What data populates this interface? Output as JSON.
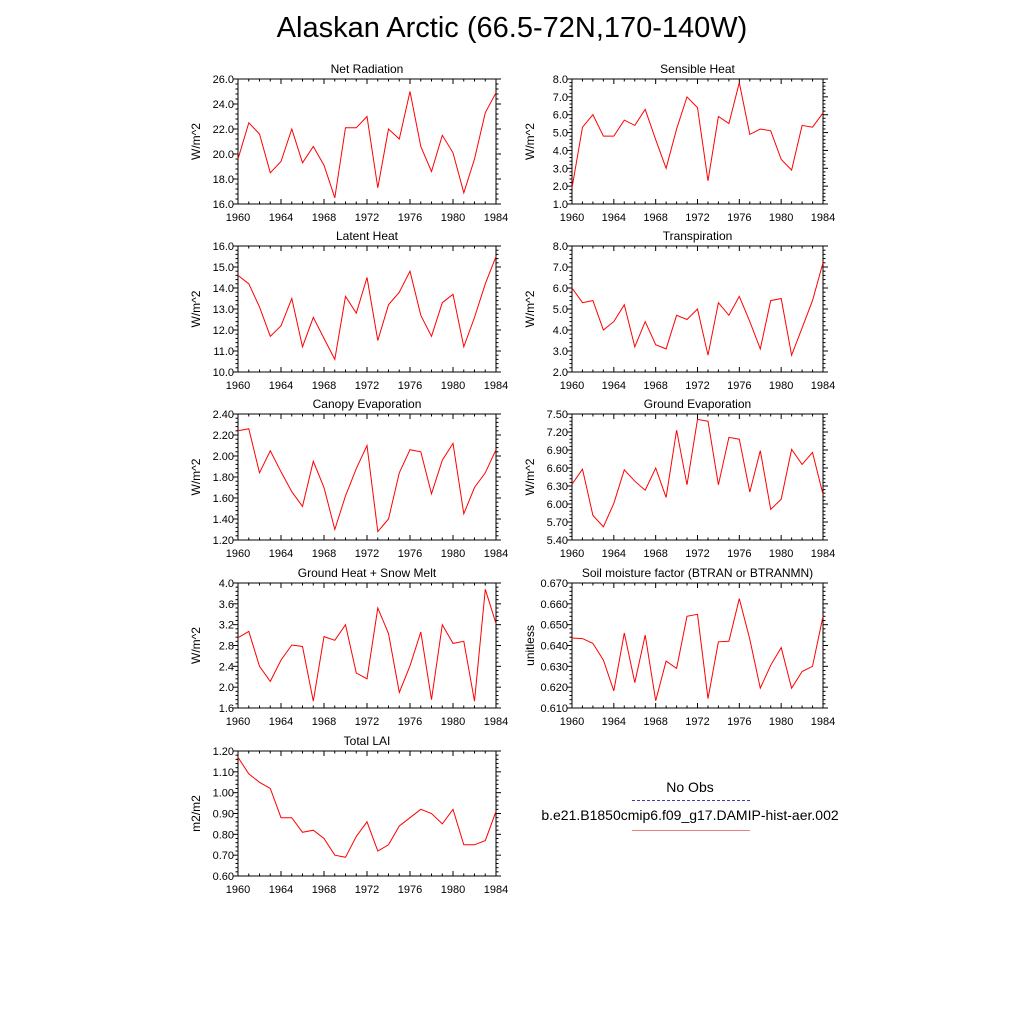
{
  "page_title": "Alaskan Arctic (66.5-72N,170-140W)",
  "legend": {
    "obs_label": "No Obs",
    "run_label": "b.e21.B1850cmip6.f09_g17.DAMIP-hist-aer.002",
    "obs_color": "#3b3bb0",
    "run_color": "#e88080"
  },
  "line_color": "#ff0000",
  "chart_data": [
    {
      "type": "line",
      "title": "Net Radiation",
      "ylabel": "W/m^2",
      "xlim": [
        1960,
        1984
      ],
      "ylim": [
        16,
        26
      ],
      "xticks": [
        1960,
        1964,
        1968,
        1972,
        1976,
        1980,
        1984
      ],
      "xtick_labels": [
        "1960",
        "1964",
        "1968",
        "1972",
        "1976",
        "1980",
        "1984"
      ],
      "yticks": [
        16,
        18,
        20,
        22,
        24,
        26
      ],
      "ytick_labels": [
        "16.0",
        "18.0",
        "20.0",
        "22.0",
        "24.0",
        "26.0"
      ],
      "x": [
        1960,
        1961,
        1962,
        1963,
        1964,
        1965,
        1966,
        1967,
        1968,
        1969,
        1970,
        1971,
        1972,
        1973,
        1974,
        1975,
        1976,
        1977,
        1978,
        1979,
        1980,
        1981,
        1982,
        1983,
        1984
      ],
      "series": [
        {
          "values": [
            19.6,
            22.5,
            21.6,
            18.5,
            19.4,
            22.0,
            19.3,
            20.6,
            19.1,
            16.5,
            22.1,
            22.1,
            23.0,
            17.3,
            22.0,
            21.2,
            25.0,
            20.6,
            18.6,
            21.5,
            20.1,
            16.9,
            19.6,
            23.3,
            24.9
          ]
        }
      ]
    },
    {
      "type": "line",
      "title": "Sensible Heat",
      "ylabel": "W/m^2",
      "xlim": [
        1960,
        1984
      ],
      "ylim": [
        1,
        8
      ],
      "xticks": [
        1960,
        1964,
        1968,
        1972,
        1976,
        1980,
        1984
      ],
      "xtick_labels": [
        "1960",
        "1964",
        "1968",
        "1972",
        "1976",
        "1980",
        "1984"
      ],
      "yticks": [
        1,
        2,
        3,
        4,
        5,
        6,
        7,
        8
      ],
      "ytick_labels": [
        "1.0",
        "2.0",
        "3.0",
        "4.0",
        "5.0",
        "6.0",
        "7.0",
        "8.0"
      ],
      "x": [
        1960,
        1961,
        1962,
        1963,
        1964,
        1965,
        1966,
        1967,
        1968,
        1969,
        1970,
        1971,
        1972,
        1973,
        1974,
        1975,
        1976,
        1977,
        1978,
        1979,
        1980,
        1981,
        1982,
        1983,
        1984
      ],
      "series": [
        {
          "values": [
            1.9,
            5.3,
            6.0,
            4.8,
            4.8,
            5.7,
            5.4,
            6.3,
            4.6,
            3.0,
            5.2,
            7.0,
            6.4,
            2.3,
            5.9,
            5.5,
            7.8,
            4.9,
            5.2,
            5.1,
            3.5,
            2.9,
            5.4,
            5.3,
            6.1
          ]
        }
      ]
    },
    {
      "type": "line",
      "title": "Latent Heat",
      "ylabel": "W/m^2",
      "xlim": [
        1960,
        1984
      ],
      "ylim": [
        10,
        16
      ],
      "xticks": [
        1960,
        1964,
        1968,
        1972,
        1976,
        1980,
        1984
      ],
      "xtick_labels": [
        "1960",
        "1964",
        "1968",
        "1972",
        "1976",
        "1980",
        "1984"
      ],
      "yticks": [
        10,
        11,
        12,
        13,
        14,
        15,
        16
      ],
      "ytick_labels": [
        "10.0",
        "11.0",
        "12.0",
        "13.0",
        "14.0",
        "15.0",
        "16.0"
      ],
      "x": [
        1960,
        1961,
        1962,
        1963,
        1964,
        1965,
        1966,
        1967,
        1968,
        1969,
        1970,
        1971,
        1972,
        1973,
        1974,
        1975,
        1976,
        1977,
        1978,
        1979,
        1980,
        1981,
        1982,
        1983,
        1984
      ],
      "series": [
        {
          "values": [
            14.6,
            14.2,
            13.1,
            11.7,
            12.2,
            13.5,
            11.2,
            12.6,
            11.6,
            10.6,
            13.6,
            12.8,
            14.5,
            11.5,
            13.2,
            13.8,
            14.8,
            12.7,
            11.7,
            13.3,
            13.7,
            11.2,
            12.6,
            14.2,
            15.5
          ]
        }
      ]
    },
    {
      "type": "line",
      "title": "Transpiration",
      "ylabel": "W/m^2",
      "xlim": [
        1960,
        1984
      ],
      "ylim": [
        2,
        8
      ],
      "xticks": [
        1960,
        1964,
        1968,
        1972,
        1976,
        1980,
        1984
      ],
      "xtick_labels": [
        "1960",
        "1964",
        "1968",
        "1972",
        "1976",
        "1980",
        "1984"
      ],
      "yticks": [
        2,
        3,
        4,
        5,
        6,
        7,
        8
      ],
      "ytick_labels": [
        "2.0",
        "3.0",
        "4.0",
        "5.0",
        "6.0",
        "7.0",
        "8.0"
      ],
      "x": [
        1960,
        1961,
        1962,
        1963,
        1964,
        1965,
        1966,
        1967,
        1968,
        1969,
        1970,
        1971,
        1972,
        1973,
        1974,
        1975,
        1976,
        1977,
        1978,
        1979,
        1980,
        1981,
        1982,
        1983,
        1984
      ],
      "series": [
        {
          "values": [
            6.0,
            5.3,
            5.4,
            4.0,
            4.4,
            5.2,
            3.2,
            4.4,
            3.3,
            3.1,
            4.7,
            4.5,
            5.0,
            2.8,
            5.3,
            4.7,
            5.6,
            4.4,
            3.1,
            5.4,
            5.5,
            2.8,
            4.1,
            5.4,
            7.2
          ]
        }
      ]
    },
    {
      "type": "line",
      "title": "Canopy Evaporation",
      "ylabel": "W/m^2",
      "xlim": [
        1960,
        1984
      ],
      "ylim": [
        1.2,
        2.4
      ],
      "xticks": [
        1960,
        1964,
        1968,
        1972,
        1976,
        1980,
        1984
      ],
      "xtick_labels": [
        "1960",
        "1964",
        "1968",
        "1972",
        "1976",
        "1980",
        "1984"
      ],
      "yticks": [
        1.2,
        1.4,
        1.6,
        1.8,
        2.0,
        2.2,
        2.4
      ],
      "ytick_labels": [
        "1.20",
        "1.40",
        "1.60",
        "1.80",
        "2.00",
        "2.20",
        "2.40"
      ],
      "x": [
        1960,
        1961,
        1962,
        1963,
        1964,
        1965,
        1966,
        1967,
        1968,
        1969,
        1970,
        1971,
        1972,
        1973,
        1974,
        1975,
        1976,
        1977,
        1978,
        1979,
        1980,
        1981,
        1982,
        1983,
        1984
      ],
      "series": [
        {
          "values": [
            2.24,
            2.26,
            1.84,
            2.05,
            1.85,
            1.66,
            1.52,
            1.95,
            1.7,
            1.3,
            1.62,
            1.88,
            2.1,
            1.28,
            1.4,
            1.84,
            2.06,
            2.04,
            1.64,
            1.96,
            2.12,
            1.45,
            1.7,
            1.84,
            2.06
          ]
        }
      ]
    },
    {
      "type": "line",
      "title": "Ground Evaporation",
      "ylabel": "W/m^2",
      "xlim": [
        1960,
        1984
      ],
      "ylim": [
        5.4,
        7.5
      ],
      "xticks": [
        1960,
        1964,
        1968,
        1972,
        1976,
        1980,
        1984
      ],
      "xtick_labels": [
        "1960",
        "1964",
        "1968",
        "1972",
        "1976",
        "1980",
        "1984"
      ],
      "yticks": [
        5.4,
        5.7,
        6.0,
        6.3,
        6.6,
        6.9,
        7.2,
        7.5
      ],
      "ytick_labels": [
        "5.40",
        "5.70",
        "6.00",
        "6.30",
        "6.60",
        "6.90",
        "7.20",
        "7.50"
      ],
      "x": [
        1960,
        1961,
        1962,
        1963,
        1964,
        1965,
        1966,
        1967,
        1968,
        1969,
        1970,
        1971,
        1972,
        1973,
        1974,
        1975,
        1976,
        1977,
        1978,
        1979,
        1980,
        1981,
        1982,
        1983,
        1984
      ],
      "series": [
        {
          "values": [
            6.33,
            6.58,
            5.81,
            5.62,
            6.01,
            6.57,
            6.38,
            6.23,
            6.6,
            6.11,
            7.23,
            6.32,
            7.41,
            7.38,
            6.32,
            7.11,
            7.08,
            6.2,
            6.89,
            5.91,
            6.08,
            6.91,
            6.66,
            6.86,
            6.16
          ]
        }
      ]
    },
    {
      "type": "line",
      "title": "Ground Heat + Snow Melt",
      "ylabel": "W/m^2",
      "xlim": [
        1960,
        1984
      ],
      "ylim": [
        1.6,
        4.0
      ],
      "xticks": [
        1960,
        1964,
        1968,
        1972,
        1976,
        1980,
        1984
      ],
      "xtick_labels": [
        "1960",
        "1964",
        "1968",
        "1972",
        "1976",
        "1980",
        "1984"
      ],
      "yticks": [
        1.6,
        2.0,
        2.4,
        2.8,
        3.2,
        3.6,
        4.0
      ],
      "ytick_labels": [
        "1.6",
        "2.0",
        "2.4",
        "2.8",
        "3.2",
        "3.6",
        "4.0"
      ],
      "x": [
        1960,
        1961,
        1962,
        1963,
        1964,
        1965,
        1966,
        1967,
        1968,
        1969,
        1970,
        1971,
        1972,
        1973,
        1974,
        1975,
        1976,
        1977,
        1978,
        1979,
        1980,
        1981,
        1982,
        1983,
        1984
      ],
      "series": [
        {
          "values": [
            2.95,
            3.07,
            2.4,
            2.11,
            2.52,
            2.81,
            2.78,
            1.73,
            2.97,
            2.9,
            3.2,
            2.27,
            2.16,
            3.52,
            3.03,
            1.9,
            2.41,
            3.06,
            1.76,
            3.2,
            2.84,
            2.88,
            1.73,
            3.88,
            3.22
          ]
        }
      ]
    },
    {
      "type": "line",
      "title": "Soil moisture factor (BTRAN or BTRANMN)",
      "ylabel": "unitless",
      "xlim": [
        1960,
        1984
      ],
      "ylim": [
        0.61,
        0.67
      ],
      "xticks": [
        1960,
        1964,
        1968,
        1972,
        1976,
        1980,
        1984
      ],
      "xtick_labels": [
        "1960",
        "1964",
        "1968",
        "1972",
        "1976",
        "1980",
        "1984"
      ],
      "yticks": [
        0.61,
        0.62,
        0.63,
        0.64,
        0.65,
        0.66,
        0.67
      ],
      "ytick_labels": [
        "0.610",
        "0.620",
        "0.630",
        "0.640",
        "0.650",
        "0.660",
        "0.670"
      ],
      "x": [
        1960,
        1961,
        1962,
        1963,
        1964,
        1965,
        1966,
        1967,
        1968,
        1969,
        1970,
        1971,
        1972,
        1973,
        1974,
        1975,
        1976,
        1977,
        1978,
        1979,
        1980,
        1981,
        1982,
        1983,
        1984
      ],
      "series": [
        {
          "values": [
            0.6436,
            0.6433,
            0.641,
            0.633,
            0.6182,
            0.646,
            0.6222,
            0.645,
            0.6135,
            0.6325,
            0.629,
            0.654,
            0.655,
            0.6145,
            0.6418,
            0.642,
            0.6625,
            0.643,
            0.6195,
            0.6305,
            0.639,
            0.6195,
            0.6275,
            0.63,
            0.654
          ]
        }
      ]
    },
    {
      "type": "line",
      "title": "Total LAI",
      "ylabel": "m2/m2",
      "xlim": [
        1960,
        1984
      ],
      "ylim": [
        0.6,
        1.2
      ],
      "xticks": [
        1960,
        1964,
        1968,
        1972,
        1976,
        1980,
        1984
      ],
      "xtick_labels": [
        "1960",
        "1964",
        "1968",
        "1972",
        "1976",
        "1980",
        "1984"
      ],
      "yticks": [
        0.6,
        0.7,
        0.8,
        0.9,
        1.0,
        1.1,
        1.2
      ],
      "ytick_labels": [
        "0.60",
        "0.70",
        "0.80",
        "0.90",
        "1.00",
        "1.10",
        "1.20"
      ],
      "x": [
        1960,
        1961,
        1962,
        1963,
        1964,
        1965,
        1966,
        1967,
        1968,
        1969,
        1970,
        1971,
        1972,
        1973,
        1974,
        1975,
        1976,
        1977,
        1978,
        1979,
        1980,
        1981,
        1982,
        1983,
        1984
      ],
      "series": [
        {
          "values": [
            1.17,
            1.09,
            1.05,
            1.02,
            0.88,
            0.88,
            0.81,
            0.82,
            0.78,
            0.7,
            0.69,
            0.79,
            0.86,
            0.72,
            0.75,
            0.84,
            0.88,
            0.92,
            0.9,
            0.85,
            0.92,
            0.75,
            0.75,
            0.77,
            0.91
          ]
        }
      ]
    }
  ]
}
